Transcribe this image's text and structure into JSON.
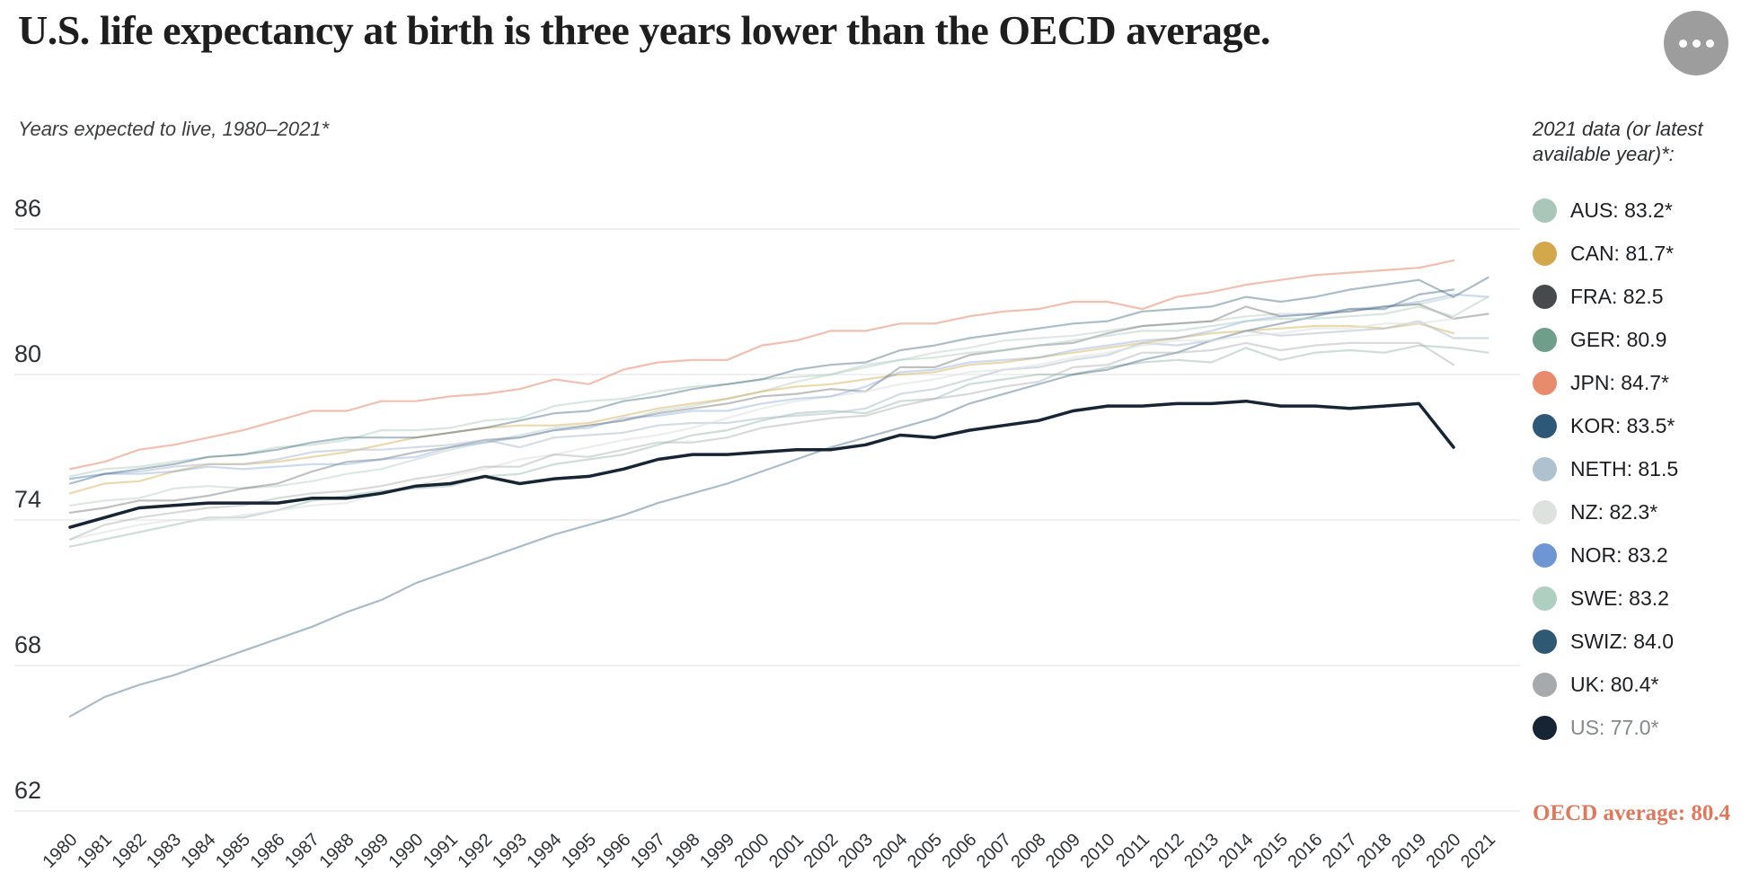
{
  "header": {
    "title": "U.S. life expectancy at birth is three years lower than the OECD average."
  },
  "legend": {
    "title": "2021 data (or latest available year)*:",
    "items": [
      {
        "code": "AUS",
        "value": "83.2*",
        "muted": false
      },
      {
        "code": "CAN",
        "value": "81.7*",
        "muted": false
      },
      {
        "code": "FRA",
        "value": "82.5",
        "muted": false
      },
      {
        "code": "GER",
        "value": "80.9",
        "muted": false
      },
      {
        "code": "JPN",
        "value": "84.7*",
        "muted": false
      },
      {
        "code": "KOR",
        "value": "83.5*",
        "muted": false
      },
      {
        "code": "NETH",
        "value": "81.5",
        "muted": false
      },
      {
        "code": "NZ",
        "value": "82.3*",
        "muted": false
      },
      {
        "code": "NOR",
        "value": "83.2",
        "muted": false
      },
      {
        "code": "SWE",
        "value": "83.2",
        "muted": false
      },
      {
        "code": "SWIZ",
        "value": "84.0",
        "muted": false
      },
      {
        "code": "UK",
        "value": "80.4*",
        "muted": false
      },
      {
        "code": "US",
        "value": "77.0*",
        "muted": true
      }
    ],
    "oecd_note": "OECD average: 80.4"
  },
  "chart_data": {
    "type": "line",
    "subtitle": "Years expected to live, 1980–2021*",
    "ylabel": "Years expected to live",
    "ylim": [
      62,
      86
    ],
    "yticks": [
      86,
      80,
      74,
      68,
      62
    ],
    "grid": true,
    "legend_position": "right",
    "x": [
      1980,
      1981,
      1982,
      1983,
      1984,
      1985,
      1986,
      1987,
      1988,
      1989,
      1990,
      1991,
      1992,
      1993,
      1994,
      1995,
      1996,
      1997,
      1998,
      1999,
      2000,
      2001,
      2002,
      2003,
      2004,
      2005,
      2006,
      2007,
      2008,
      2009,
      2010,
      2011,
      2012,
      2013,
      2014,
      2015,
      2016,
      2017,
      2018,
      2019,
      2020,
      2021
    ],
    "series": [
      {
        "name": "AUS",
        "color": "#a9c6b9",
        "opacity": 0.4,
        "width": 2.2,
        "values": [
          74.6,
          74.8,
          74.9,
          75.3,
          75.4,
          75.3,
          75.4,
          75.6,
          75.9,
          76.1,
          76.5,
          76.9,
          77.2,
          77.5,
          77.8,
          77.9,
          78.1,
          78.5,
          78.7,
          79.0,
          79.3,
          79.7,
          80.0,
          80.4,
          80.6,
          80.9,
          81.1,
          81.4,
          81.5,
          81.6,
          81.8,
          82.0,
          82.1,
          82.2,
          82.4,
          82.5,
          82.5,
          82.6,
          82.8,
          82.9,
          83.2,
          null
        ]
      },
      {
        "name": "CAN",
        "color": "#d2a84a",
        "opacity": 0.45,
        "width": 2.2,
        "values": [
          75.1,
          75.5,
          75.6,
          76.0,
          76.3,
          76.3,
          76.4,
          76.6,
          76.8,
          77.1,
          77.4,
          77.6,
          77.8,
          77.9,
          77.9,
          78.0,
          78.3,
          78.6,
          78.8,
          79.0,
          79.3,
          79.5,
          79.6,
          79.8,
          80.0,
          80.1,
          80.4,
          80.5,
          80.7,
          80.9,
          81.1,
          81.3,
          81.5,
          81.7,
          81.8,
          81.9,
          82.0,
          82.0,
          81.9,
          82.1,
          81.7,
          null
        ]
      },
      {
        "name": "FRA",
        "color": "#474a4c",
        "opacity": 0.35,
        "width": 2.2,
        "values": [
          74.3,
          74.5,
          74.8,
          74.8,
          75.0,
          75.3,
          75.5,
          76.0,
          76.4,
          76.5,
          76.8,
          77.0,
          77.3,
          77.4,
          77.7,
          77.9,
          78.1,
          78.4,
          78.6,
          78.8,
          79.1,
          79.2,
          79.4,
          79.3,
          80.3,
          80.3,
          80.8,
          81.0,
          81.2,
          81.3,
          81.7,
          82.0,
          82.1,
          82.2,
          82.8,
          82.4,
          82.5,
          82.6,
          82.8,
          82.9,
          82.3,
          82.5
        ]
      },
      {
        "name": "GER",
        "color": "#6f9e8b",
        "opacity": 0.35,
        "width": 2.2,
        "values": [
          72.9,
          73.2,
          73.5,
          73.8,
          74.1,
          74.1,
          74.4,
          74.8,
          75.0,
          75.2,
          75.3,
          75.4,
          75.8,
          75.9,
          76.3,
          76.5,
          76.7,
          77.1,
          77.5,
          77.7,
          78.1,
          78.4,
          78.5,
          78.4,
          78.9,
          79.0,
          79.6,
          79.8,
          80.0,
          80.0,
          80.3,
          80.5,
          80.6,
          80.5,
          81.1,
          80.6,
          80.9,
          81.0,
          80.9,
          81.2,
          81.1,
          80.9
        ]
      },
      {
        "name": "JPN",
        "color": "#e78b6c",
        "opacity": 0.55,
        "width": 2.2,
        "values": [
          76.1,
          76.4,
          76.9,
          77.1,
          77.4,
          77.7,
          78.1,
          78.5,
          78.5,
          78.9,
          78.9,
          79.1,
          79.2,
          79.4,
          79.8,
          79.6,
          80.2,
          80.5,
          80.6,
          80.6,
          81.2,
          81.4,
          81.8,
          81.8,
          82.1,
          82.1,
          82.4,
          82.6,
          82.7,
          83.0,
          83.0,
          82.7,
          83.2,
          83.4,
          83.7,
          83.9,
          84.1,
          84.2,
          84.3,
          84.4,
          84.7,
          null
        ]
      },
      {
        "name": "KOR",
        "color": "#2e5878",
        "opacity": 0.4,
        "width": 2.2,
        "values": [
          65.9,
          66.7,
          67.2,
          67.6,
          68.1,
          68.6,
          69.1,
          69.6,
          70.2,
          70.7,
          71.4,
          71.9,
          72.4,
          72.9,
          73.4,
          73.8,
          74.2,
          74.7,
          75.1,
          75.5,
          76.0,
          76.5,
          77.0,
          77.4,
          77.8,
          78.2,
          78.8,
          79.2,
          79.6,
          80.0,
          80.2,
          80.6,
          80.9,
          81.4,
          81.8,
          82.1,
          82.4,
          82.7,
          82.7,
          83.3,
          83.5,
          null
        ]
      },
      {
        "name": "NETH",
        "color": "#afc0ce",
        "opacity": 0.55,
        "width": 2.2,
        "values": [
          75.7,
          75.9,
          76.0,
          76.2,
          76.3,
          76.3,
          76.5,
          76.8,
          76.9,
          76.9,
          77.0,
          77.1,
          77.3,
          77.0,
          77.4,
          77.5,
          77.6,
          77.9,
          78.0,
          78.0,
          78.2,
          78.3,
          78.4,
          78.6,
          79.2,
          79.4,
          79.8,
          80.2,
          80.3,
          80.6,
          80.8,
          81.3,
          81.2,
          81.4,
          81.8,
          81.6,
          81.7,
          81.8,
          81.9,
          82.2,
          81.5,
          81.5
        ]
      },
      {
        "name": "NZ",
        "color": "#dde2df",
        "opacity": 0.6,
        "width": 2.2,
        "values": [
          73.2,
          73.5,
          73.8,
          74.0,
          74.0,
          74.2,
          74.4,
          74.6,
          74.7,
          75.1,
          75.4,
          75.8,
          76.1,
          76.5,
          76.7,
          77.0,
          77.3,
          77.5,
          77.8,
          78.2,
          78.6,
          78.9,
          79.1,
          79.3,
          79.6,
          79.8,
          80.1,
          80.2,
          80.4,
          80.7,
          80.9,
          81.2,
          81.4,
          81.4,
          81.6,
          81.7,
          81.9,
          81.9,
          82.1,
          82.1,
          82.3,
          null
        ]
      },
      {
        "name": "NOR",
        "color": "#6e96d5",
        "opacity": 0.35,
        "width": 2.2,
        "values": [
          75.7,
          75.9,
          75.9,
          76.0,
          76.2,
          76.1,
          76.2,
          76.3,
          76.3,
          76.5,
          76.6,
          77.0,
          77.2,
          77.4,
          77.7,
          77.8,
          78.2,
          78.3,
          78.5,
          78.5,
          78.8,
          79.0,
          79.1,
          79.5,
          80.1,
          80.2,
          80.5,
          80.6,
          80.7,
          81.0,
          81.2,
          81.4,
          81.5,
          81.8,
          82.2,
          82.4,
          82.5,
          82.7,
          82.8,
          83.0,
          83.3,
          83.2
        ]
      },
      {
        "name": "SWE",
        "color": "#afcfc0",
        "opacity": 0.5,
        "width": 2.2,
        "values": [
          75.8,
          76.1,
          76.2,
          76.4,
          76.6,
          76.7,
          77.0,
          77.1,
          77.3,
          77.7,
          77.7,
          77.8,
          78.1,
          78.2,
          78.7,
          78.9,
          79.0,
          79.3,
          79.5,
          79.6,
          79.8,
          79.9,
          80.0,
          80.3,
          80.6,
          80.7,
          80.9,
          81.0,
          81.2,
          81.4,
          81.6,
          81.8,
          81.8,
          82.0,
          82.2,
          82.3,
          82.3,
          82.4,
          82.5,
          82.8,
          82.4,
          83.2
        ]
      },
      {
        "name": "SWIZ",
        "color": "#2f5972",
        "opacity": 0.4,
        "width": 2.2,
        "values": [
          75.5,
          75.9,
          76.1,
          76.3,
          76.6,
          76.7,
          76.9,
          77.2,
          77.4,
          77.4,
          77.4,
          77.6,
          77.8,
          78.1,
          78.4,
          78.5,
          78.9,
          79.1,
          79.4,
          79.6,
          79.8,
          80.2,
          80.4,
          80.5,
          81.0,
          81.2,
          81.5,
          81.7,
          81.9,
          82.1,
          82.2,
          82.6,
          82.7,
          82.8,
          83.2,
          83.0,
          83.2,
          83.5,
          83.7,
          83.9,
          83.2,
          84.0
        ]
      },
      {
        "name": "UK",
        "color": "#a7aaac",
        "opacity": 0.45,
        "width": 2.2,
        "values": [
          73.2,
          73.8,
          74.1,
          74.3,
          74.5,
          74.6,
          74.9,
          75.1,
          75.2,
          75.4,
          75.7,
          75.9,
          76.2,
          76.2,
          76.7,
          76.6,
          76.9,
          77.2,
          77.2,
          77.4,
          77.8,
          78.0,
          78.2,
          78.3,
          78.7,
          79.0,
          79.2,
          79.5,
          79.7,
          80.3,
          80.4,
          80.9,
          80.9,
          81.0,
          81.3,
          81.0,
          81.2,
          81.3,
          81.3,
          81.3,
          80.4,
          null
        ]
      },
      {
        "name": "US",
        "color": "#172433",
        "opacity": 1.0,
        "width": 3.5,
        "values": [
          73.7,
          74.1,
          74.5,
          74.6,
          74.7,
          74.7,
          74.7,
          74.9,
          74.9,
          75.1,
          75.4,
          75.5,
          75.8,
          75.5,
          75.7,
          75.8,
          76.1,
          76.5,
          76.7,
          76.7,
          76.8,
          76.9,
          76.9,
          77.1,
          77.5,
          77.4,
          77.7,
          77.9,
          78.1,
          78.5,
          78.7,
          78.7,
          78.8,
          78.8,
          78.9,
          78.7,
          78.7,
          78.6,
          78.7,
          78.8,
          77.0,
          null
        ]
      }
    ]
  }
}
